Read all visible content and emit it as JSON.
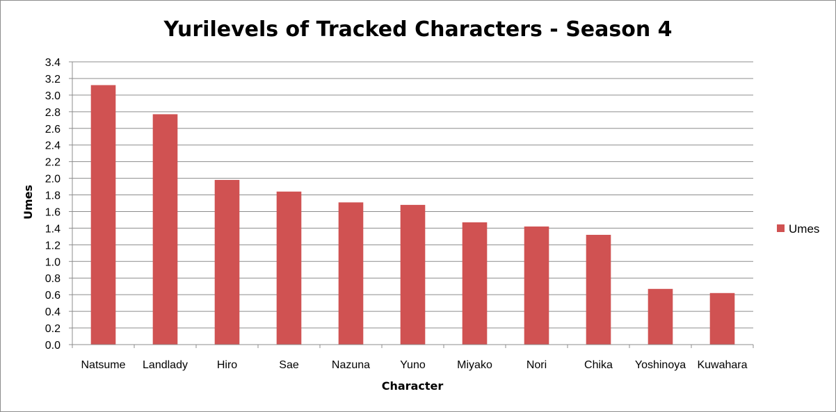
{
  "chart_data": {
    "type": "bar",
    "title": "Yurilevels of Tracked Characters - Season 4",
    "xlabel": "Character",
    "ylabel": "Umes",
    "categories": [
      "Natsume",
      "Landlady",
      "Hiro",
      "Sae",
      "Nazuna",
      "Yuno",
      "Miyako",
      "Nori",
      "Chika",
      "Yoshinoya",
      "Kuwahara"
    ],
    "series": [
      {
        "name": "Umes",
        "color": "#d05252",
        "values": [
          3.12,
          2.77,
          1.98,
          1.84,
          1.71,
          1.68,
          1.47,
          1.42,
          1.32,
          0.67,
          0.62
        ]
      }
    ],
    "ylim": [
      0,
      3.4
    ],
    "yticks": [
      "0.0",
      "0.2",
      "0.4",
      "0.6",
      "0.8",
      "1.0",
      "1.2",
      "1.4",
      "1.6",
      "1.8",
      "2.0",
      "2.2",
      "2.4",
      "2.6",
      "2.8",
      "3.0",
      "3.2",
      "3.4"
    ],
    "grid": true,
    "legend_position": "right"
  }
}
